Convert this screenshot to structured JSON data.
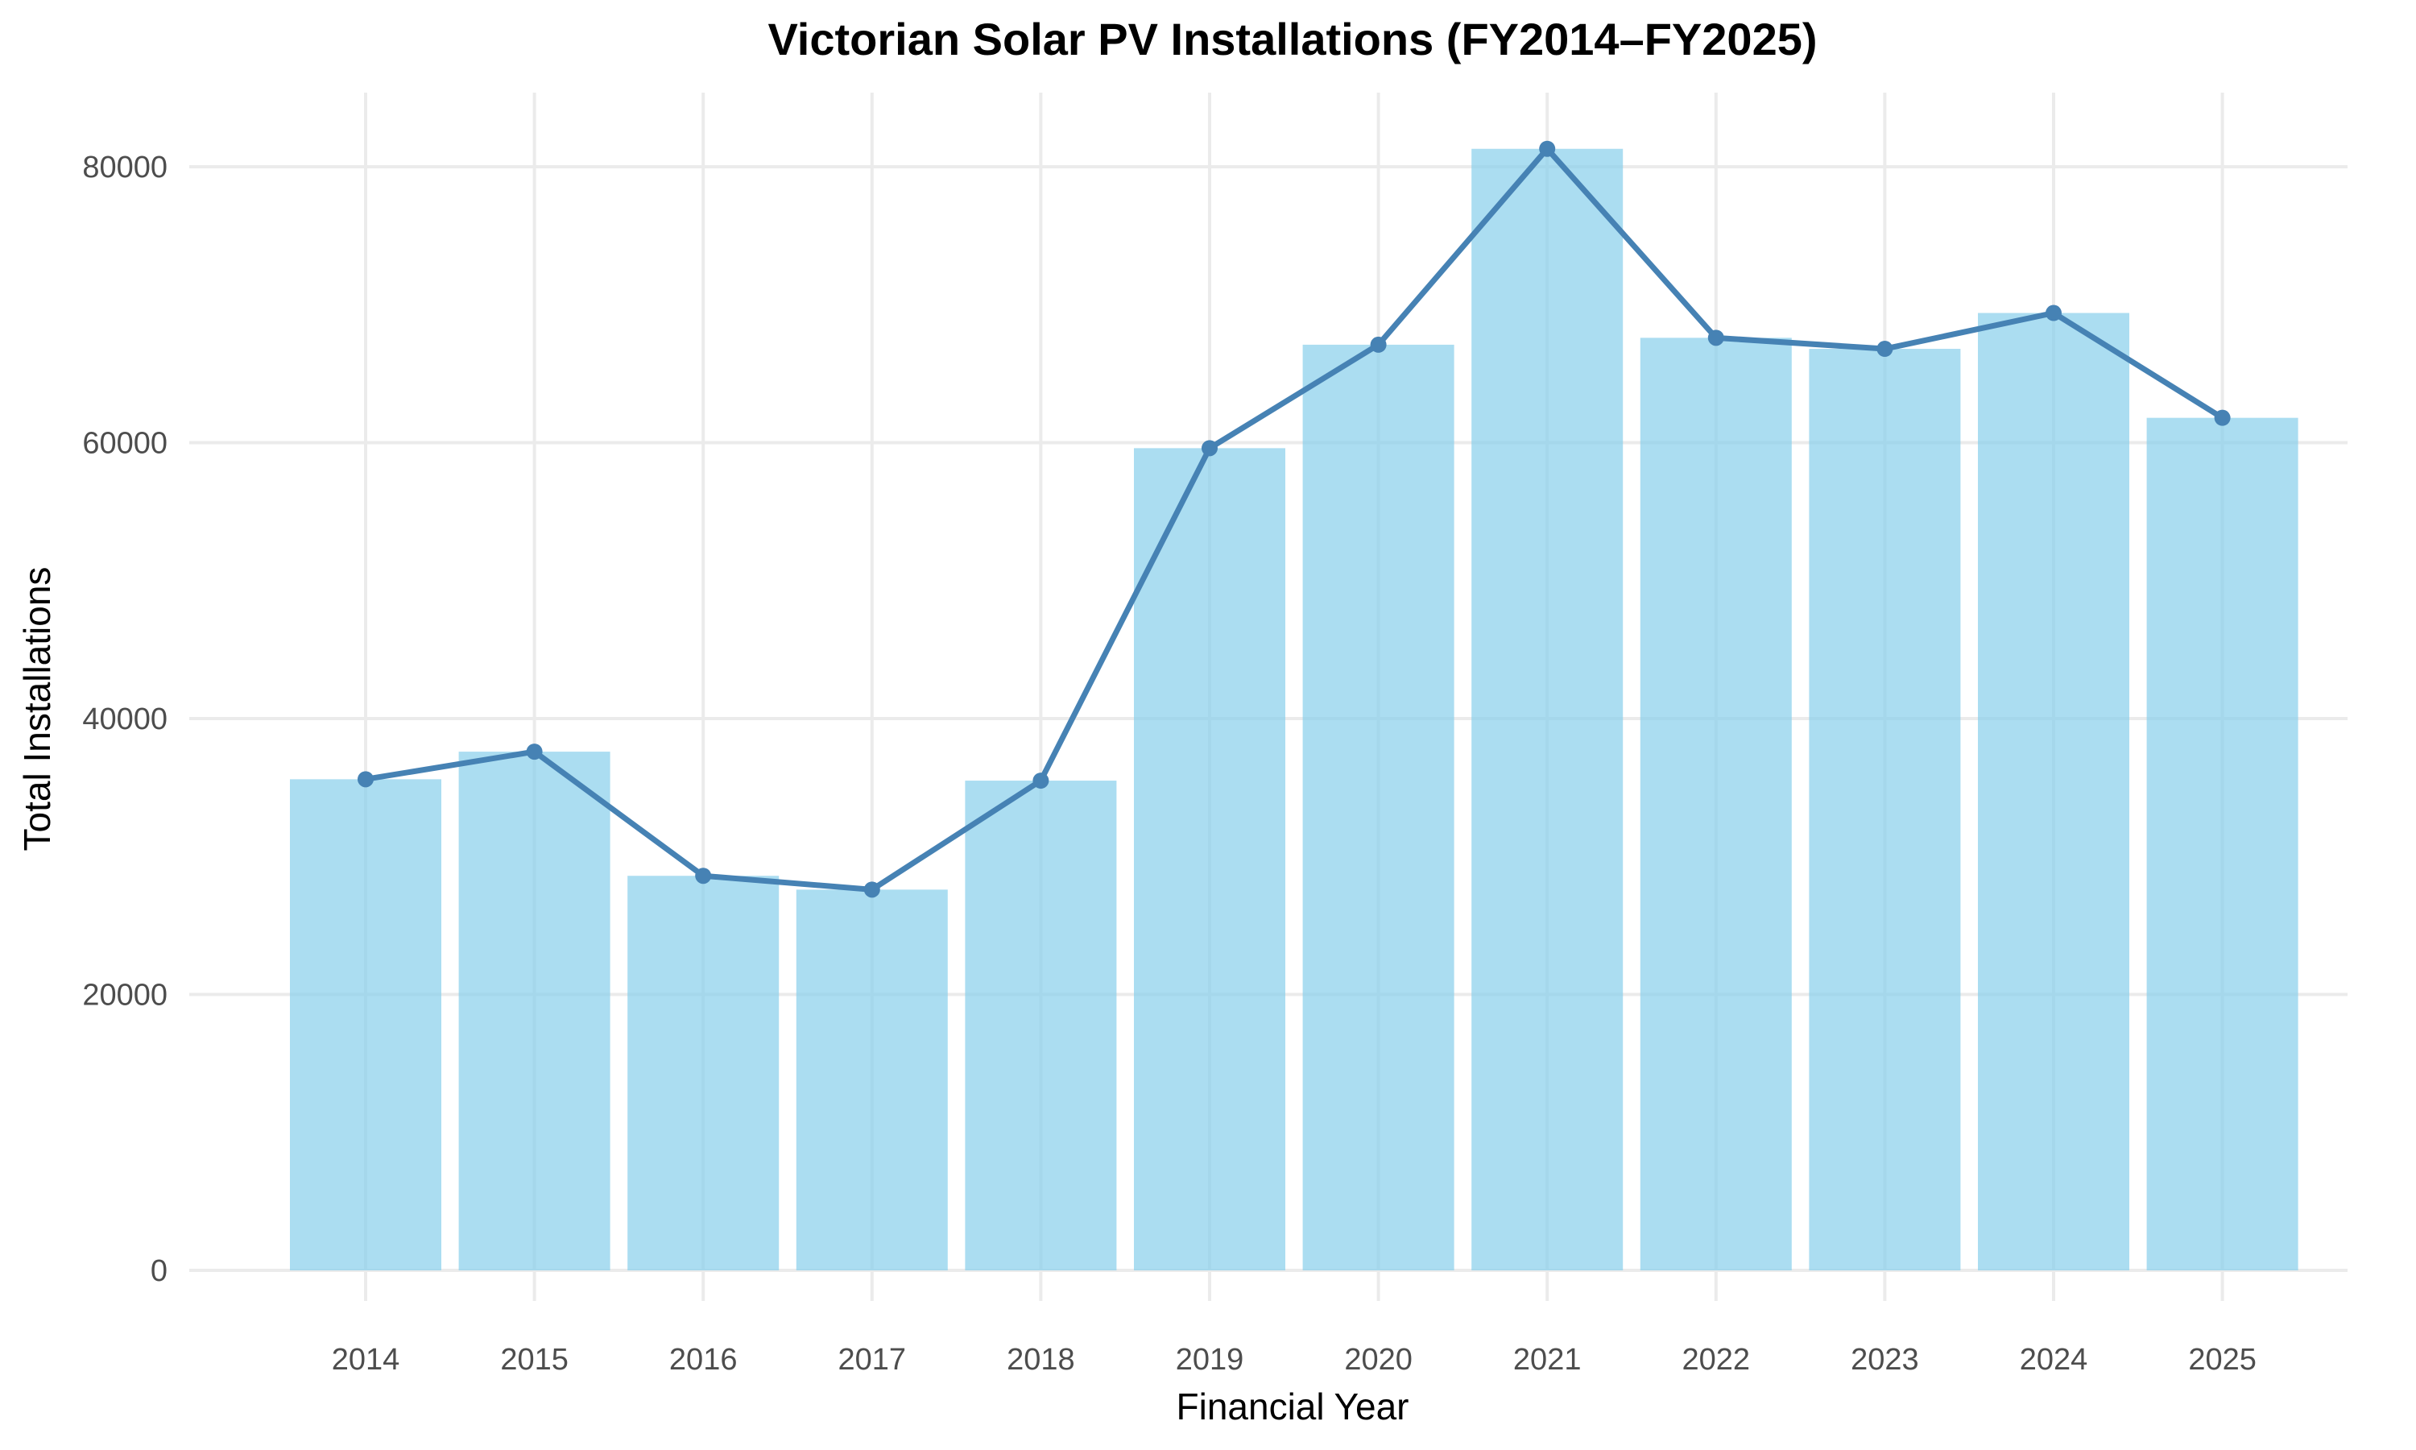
{
  "chart_data": {
    "type": "bar",
    "title": "Victorian Solar PV Installations (FY2014–FY2025)",
    "xlabel": "Financial Year",
    "ylabel": "Total Installations",
    "categories": [
      "2014",
      "2015",
      "2016",
      "2017",
      "2018",
      "2019",
      "2020",
      "2021",
      "2022",
      "2023",
      "2024",
      "2025"
    ],
    "values": [
      35600,
      37600,
      28600,
      27600,
      35500,
      59600,
      67100,
      81300,
      67600,
      66800,
      69400,
      61800
    ],
    "overlay": {
      "type": "line",
      "values": [
        35600,
        37600,
        28600,
        27600,
        35500,
        59600,
        67100,
        81300,
        67600,
        66800,
        69400,
        61800
      ]
    },
    "ylim": [
      0,
      85000
    ],
    "yticks": [
      0,
      20000,
      40000,
      60000,
      80000
    ],
    "ytick_labels": [
      "0",
      "20000",
      "40000",
      "60000",
      "80000"
    ],
    "grid": true,
    "legend": "none",
    "colors": {
      "bar": "#87ceeb",
      "line": "#4682b4"
    }
  }
}
